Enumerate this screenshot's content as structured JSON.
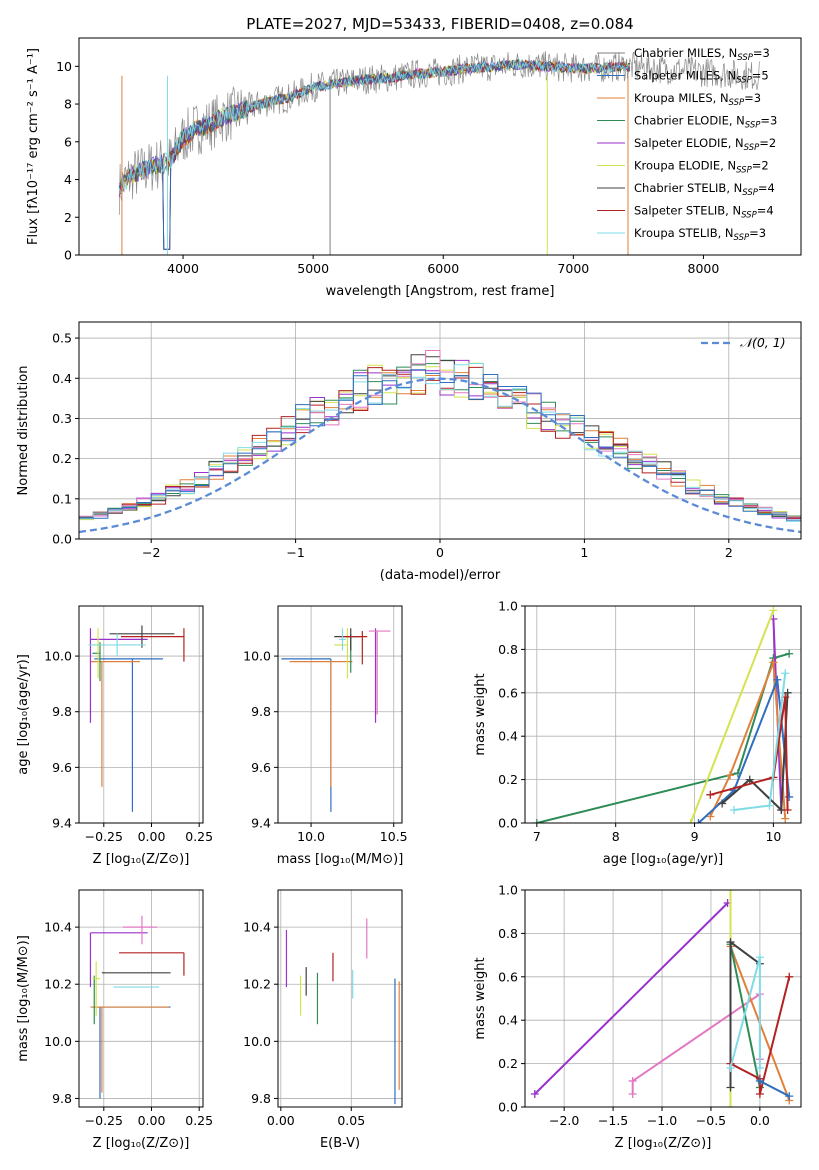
{
  "figure": {
    "title": "PLATE=2027, MJD=53433, FIBERID=0408, z=0.084"
  },
  "colors": {
    "chabrier_miles": "#7f7f7f",
    "salpeter_miles": "#2f6fbf",
    "kroupa_miles": "#e0803a",
    "chabrier_elodie": "#2e8b57",
    "salpeter_elodie": "#9932cc",
    "kroupa_elodie": "#d4e34f",
    "chabrier_stelib": "#404040",
    "salpeter_stelib": "#b22222",
    "kroupa_stelib": "#7fdbe6",
    "gaussian": "#5b8bd6"
  },
  "chart_data": [
    {
      "id": "spectrum",
      "type": "line",
      "title": "PLATE=2027, MJD=53433, FIBERID=0408, z=0.084",
      "xlabel": "wavelength [Angstrom, rest frame]",
      "ylabel": "Flux [fλ10⁻¹⁷ erg cm⁻² s⁻¹ A⁻¹]",
      "xlim": [
        3200,
        8750
      ],
      "ylim": [
        0,
        11.5
      ],
      "xticks": [
        4000,
        5000,
        6000,
        7000,
        8000
      ],
      "yticks": [
        0,
        2,
        4,
        6,
        8,
        10
      ],
      "grid": false,
      "legend_position": "right",
      "data_x": [
        3500,
        3600,
        3700,
        3800,
        3900,
        4000,
        4100,
        4200,
        4300,
        4400,
        4500,
        4600,
        4700,
        4800,
        4900,
        5000,
        5200,
        5400,
        5600,
        5800,
        6000,
        6200,
        6400,
        6600,
        6800,
        7000,
        7200,
        7400,
        7600,
        7800,
        8000,
        8200,
        8400
      ],
      "data_y": [
        3.5,
        4.2,
        4.5,
        4.8,
        5.0,
        6.2,
        6.7,
        6.9,
        7.3,
        7.5,
        7.8,
        8.0,
        8.2,
        8.3,
        8.6,
        8.9,
        9.1,
        9.3,
        9.4,
        9.6,
        9.7,
        9.9,
        10.0,
        10.1,
        10.0,
        9.9,
        9.9,
        10.0,
        9.9,
        9.8,
        9.7,
        9.6,
        9.5
      ],
      "series": [
        {
          "name": "Chabrier MILES, N_SSP=3"
        },
        {
          "name": "Salpeter MILES, N_SSP=5"
        },
        {
          "name": "Kroupa MILES, N_SSP=3"
        },
        {
          "name": "Chabrier ELODIE, N_SSP=3"
        },
        {
          "name": "Salpeter ELODIE, N_SSP=2"
        },
        {
          "name": "Kroupa ELODIE, N_SSP=2"
        },
        {
          "name": "Chabrier STELIB, N_SSP=4"
        },
        {
          "name": "Salpeter STELIB, N_SSP=4"
        },
        {
          "name": "Kroupa STELIB, N_SSP=3"
        }
      ],
      "legend": [
        {
          "prefix": "Chabrier MILES, N",
          "sub": "SSP",
          "suffix": "=3"
        },
        {
          "prefix": "Salpeter MILES, N",
          "sub": "SSP",
          "suffix": "=5"
        },
        {
          "prefix": "Kroupa MILES, N",
          "sub": "SSP",
          "suffix": "=3"
        },
        {
          "prefix": "Chabrier ELODIE, N",
          "sub": "SSP",
          "suffix": "=3"
        },
        {
          "prefix": "Salpeter ELODIE, N",
          "sub": "SSP",
          "suffix": "=2"
        },
        {
          "prefix": "Kroupa ELODIE, N",
          "sub": "SSP",
          "suffix": "=2"
        },
        {
          "prefix": "Chabrier STELIB, N",
          "sub": "SSP",
          "suffix": "=4"
        },
        {
          "prefix": "Salpeter STELIB, N",
          "sub": "SSP",
          "suffix": "=4"
        },
        {
          "prefix": "Kroupa STELIB, N",
          "sub": "SSP",
          "suffix": "=3"
        }
      ]
    },
    {
      "id": "residuals",
      "type": "histogram",
      "xlabel": "(data-model)/error",
      "ylabel": "Normed distribution",
      "xlim": [
        -2.5,
        2.5
      ],
      "ylim": [
        0,
        0.54
      ],
      "xticks": [
        -2,
        -1,
        0,
        1,
        2
      ],
      "yticks": [
        0.0,
        0.1,
        0.2,
        0.3,
        0.4,
        0.5
      ],
      "grid": true,
      "legend_position": "top-right",
      "bin_width": 0.1,
      "gaussian": {
        "mean": 0,
        "sigma": 1,
        "label": "𝒩(0, 1)"
      },
      "base_values": [
        0.02,
        0.03,
        0.035,
        0.04,
        0.045,
        0.05,
        0.06,
        0.07,
        0.08,
        0.09,
        0.1,
        0.12,
        0.13,
        0.15,
        0.17,
        0.19,
        0.21,
        0.23,
        0.25,
        0.27,
        0.3,
        0.31,
        0.33,
        0.35,
        0.37,
        0.38,
        0.39,
        0.4,
        0.41,
        0.42,
        0.41,
        0.4,
        0.39,
        0.38,
        0.36,
        0.34,
        0.32,
        0.31,
        0.29,
        0.27,
        0.25,
        0.24,
        0.22,
        0.2,
        0.19,
        0.17,
        0.15,
        0.13,
        0.12,
        0.1,
        0.09,
        0.08,
        0.07,
        0.06,
        0.05,
        0.045,
        0.04,
        0.035,
        0.03,
        0.025
      ]
    },
    {
      "id": "age_vs_Z",
      "type": "errorbar",
      "xlabel": "Z [log₁₀(Z/Z⊙)]",
      "ylabel": "age  [log₁₀(age/yr)]",
      "xlim": [
        -0.38,
        0.27
      ],
      "ylim": [
        9.4,
        10.18
      ],
      "xticks": [
        -0.25,
        0.0,
        0.25
      ],
      "yticks": [
        9.4,
        9.6,
        9.8,
        10.0
      ],
      "grid": true,
      "points": [
        {
          "series": "salpeter_miles",
          "x": -0.1,
          "y": 9.99,
          "xerr": [
            0.2,
            0.16
          ],
          "yerr": [
            0.55,
            0.0
          ]
        },
        {
          "series": "kroupa_miles",
          "x": -0.26,
          "y": 9.98,
          "xerr": [
            0.06,
            0.2
          ],
          "yerr": [
            0.45,
            0.0
          ]
        },
        {
          "series": "chabrier_elodie",
          "x": -0.27,
          "y": 10.01,
          "xerr": [
            0.04,
            0.0
          ],
          "yerr": [
            0.1,
            0.04
          ]
        },
        {
          "series": "salpeter_elodie",
          "x": -0.32,
          "y": 10.06,
          "xerr": [
            0.0,
            0.3
          ],
          "yerr": [
            0.3,
            0.04
          ]
        },
        {
          "series": "kroupa_elodie",
          "x": -0.28,
          "y": 10.04,
          "xerr": [
            0.03,
            0.03
          ],
          "yerr": [
            0.12,
            0.06
          ]
        },
        {
          "series": "chabrier_stelib",
          "x": -0.05,
          "y": 10.08,
          "xerr": [
            0.17,
            0.17
          ],
          "yerr": [
            0.05,
            0.03
          ]
        },
        {
          "series": "salpeter_stelib",
          "x": 0.17,
          "y": 10.07,
          "xerr": [
            0.33,
            0.0
          ],
          "yerr": [
            0.09,
            0.03
          ]
        },
        {
          "series": "kroupa_stelib",
          "x": -0.18,
          "y": 10.04,
          "xerr": [
            0.15,
            0.15
          ],
          "yerr": [
            0.04,
            0.04
          ]
        }
      ]
    },
    {
      "id": "age_vs_mass",
      "type": "errorbar",
      "xlabel": "mass [log₁₀(M/M⊙)]",
      "ylabel": "",
      "xlim": [
        9.8,
        10.55
      ],
      "ylim": [
        9.4,
        10.18
      ],
      "xticks": [
        10.0,
        10.5
      ],
      "yticks": [
        9.4,
        9.6,
        9.8,
        10.0
      ],
      "grid": true,
      "points": [
        {
          "series": "salpeter_miles",
          "x": 10.12,
          "y": 9.99,
          "xerr": [
            0.3,
            0.0
          ],
          "yerr": [
            0.55,
            0.0
          ]
        },
        {
          "series": "kroupa_miles",
          "x": 10.12,
          "y": 9.98,
          "xerr": [
            0.25,
            0.13
          ],
          "yerr": [
            0.45,
            0.0
          ]
        },
        {
          "series": "chabrier_elodie",
          "x": 10.24,
          "y": 10.02,
          "xerr": [
            0.0,
            0.0
          ],
          "yerr": [
            0.08,
            0.06
          ]
        },
        {
          "series": "salpeter_elodie",
          "x": 10.39,
          "y": 10.06,
          "xerr": [
            0.0,
            0.0
          ],
          "yerr": [
            0.3,
            0.04
          ]
        },
        {
          "series": "kroupa_elodie",
          "x": 10.22,
          "y": 10.04,
          "xerr": [
            0.08,
            0.0
          ],
          "yerr": [
            0.12,
            0.06
          ]
        },
        {
          "series": "chabrier_stelib",
          "x": 10.24,
          "y": 10.07,
          "xerr": [
            0.1,
            0.06
          ],
          "yerr": [
            0.05,
            0.03
          ]
        },
        {
          "series": "salpeter_stelib",
          "x": 10.31,
          "y": 10.07,
          "xerr": [
            0.13,
            0.03
          ],
          "yerr": [
            0.1,
            0.02
          ]
        },
        {
          "series": "kroupa_stelib",
          "x": 10.19,
          "y": 10.06,
          "xerr": [
            0.02,
            0.02
          ],
          "yerr": [
            0.04,
            0.04
          ]
        },
        {
          "series": "kroupa_miles_2",
          "x": 10.4,
          "y": 10.09,
          "xerr": [
            0.05,
            0.08
          ],
          "yerr": [
            0.3,
            0.0
          ]
        }
      ]
    },
    {
      "id": "mass_weight_vs_age",
      "type": "line",
      "xlabel": "age  [log₁₀(age/yr)]",
      "ylabel": "mass weight",
      "xlim": [
        6.85,
        10.35
      ],
      "ylim": [
        0,
        1.0
      ],
      "xticks": [
        7,
        8,
        9,
        10
      ],
      "yticks": [
        0.0,
        0.2,
        0.4,
        0.6,
        0.8,
        1.0
      ],
      "grid": true,
      "series": [
        {
          "key": "chabrier_elodie",
          "x": [
            7.0,
            9.55,
            10.0,
            10.2
          ],
          "y": [
            0.0,
            0.23,
            0.76,
            0.78
          ]
        },
        {
          "key": "salpeter_elodie",
          "x": [
            10.0,
            10.1
          ],
          "y": [
            0.94,
            0.06
          ]
        },
        {
          "key": "kroupa_elodie",
          "x": [
            8.95,
            10.0
          ],
          "y": [
            0.0,
            0.98
          ]
        },
        {
          "key": "kroupa_miles",
          "x": [
            9.2,
            9.45,
            10.0,
            10.15
          ],
          "y": [
            0.03,
            0.22,
            0.74,
            0.02
          ]
        },
        {
          "key": "salpeter_miles",
          "x": [
            9.05,
            9.5,
            10.05,
            10.2
          ],
          "y": [
            0.0,
            0.15,
            0.66,
            0.12
          ]
        },
        {
          "key": "chabrier_stelib",
          "x": [
            9.35,
            9.7,
            10.1,
            10.18
          ],
          "y": [
            0.09,
            0.2,
            0.06,
            0.6
          ]
        },
        {
          "key": "salpeter_stelib",
          "x": [
            9.2,
            10.0,
            10.15,
            10.18
          ],
          "y": [
            0.13,
            0.21,
            0.58,
            0.06
          ]
        },
        {
          "key": "kroupa_stelib",
          "x": [
            9.5,
            9.95,
            10.15
          ],
          "y": [
            0.06,
            0.08,
            0.69
          ]
        }
      ]
    },
    {
      "id": "mass_vs_Z",
      "type": "errorbar",
      "xlabel": "Z [log₁₀(Z/Z⊙)]",
      "ylabel": "mass [log₁₀(M/M⊙)]",
      "xlim": [
        -0.38,
        0.27
      ],
      "ylim": [
        9.77,
        10.53
      ],
      "xticks": [
        -0.25,
        0.0,
        0.25
      ],
      "yticks": [
        9.8,
        10.0,
        10.2,
        10.4
      ],
      "grid": true,
      "points": [
        {
          "series": "salpeter_miles",
          "x": -0.27,
          "y": 10.12,
          "xerr": [
            0.04,
            0.37
          ],
          "yerr": [
            0.32,
            0.0
          ]
        },
        {
          "series": "kroupa_miles",
          "x": -0.26,
          "y": 10.12,
          "xerr": [
            0.06,
            0.35
          ],
          "yerr": [
            0.3,
            0.0
          ]
        },
        {
          "series": "chabrier_elodie",
          "x": -0.3,
          "y": 10.23,
          "xerr": [
            0.0,
            0.0
          ],
          "yerr": [
            0.17,
            0.0
          ]
        },
        {
          "series": "salpeter_elodie",
          "x": -0.32,
          "y": 10.38,
          "xerr": [
            0.0,
            0.3
          ],
          "yerr": [
            0.19,
            0.0
          ]
        },
        {
          "series": "kroupa_elodie",
          "x": -0.29,
          "y": 10.22,
          "xerr": [
            0.02,
            0.02
          ],
          "yerr": [
            0.13,
            0.06
          ]
        },
        {
          "series": "chabrier_stelib",
          "x": -0.08,
          "y": 10.24,
          "xerr": [
            0.18,
            0.18
          ],
          "yerr": [
            0.0,
            0.0
          ]
        },
        {
          "series": "salpeter_stelib",
          "x": 0.17,
          "y": 10.31,
          "xerr": [
            0.34,
            0.0
          ],
          "yerr": [
            0.08,
            0.0
          ]
        },
        {
          "series": "kroupa_stelib",
          "x": -0.08,
          "y": 10.19,
          "xerr": [
            0.12,
            0.12
          ],
          "yerr": [
            0.0,
            0.0
          ]
        },
        {
          "series": "kroupa_miles_2",
          "x": -0.05,
          "y": 10.4,
          "xerr": [
            0.1,
            0.08
          ],
          "yerr": [
            0.06,
            0.04
          ]
        }
      ]
    },
    {
      "id": "mass_vs_ebv",
      "type": "errorbar",
      "xlabel": "E(B-V)",
      "ylabel": "",
      "xlim": [
        -0.002,
        0.086
      ],
      "ylim": [
        9.77,
        10.53
      ],
      "xticks": [
        0.0,
        0.05
      ],
      "xtick_labels": [
        "0.00",
        "0.05"
      ],
      "yticks": [
        9.8,
        10.0,
        10.2,
        10.4
      ],
      "grid": true,
      "points": [
        {
          "series": "salpeter_elodie",
          "x": 0.004,
          "y": 10.29,
          "yerr": [
            0.1,
            0.1
          ]
        },
        {
          "series": "kroupa_elodie",
          "x": 0.014,
          "y": 10.16,
          "yerr": [
            0.07,
            0.07
          ]
        },
        {
          "series": "chabrier_stelib",
          "x": 0.018,
          "y": 10.21,
          "yerr": [
            0.05,
            0.05
          ]
        },
        {
          "series": "chabrier_elodie",
          "x": 0.026,
          "y": 10.15,
          "yerr": [
            0.09,
            0.09
          ]
        },
        {
          "series": "salpeter_stelib",
          "x": 0.037,
          "y": 10.26,
          "yerr": [
            0.05,
            0.05
          ]
        },
        {
          "series": "kroupa_stelib",
          "x": 0.051,
          "y": 10.2,
          "yerr": [
            0.05,
            0.05
          ]
        },
        {
          "series": "kroupa_miles_2",
          "x": 0.061,
          "y": 10.36,
          "yerr": [
            0.07,
            0.07
          ]
        },
        {
          "series": "salpeter_miles",
          "x": 0.081,
          "y": 10.0,
          "yerr": [
            0.22,
            0.22
          ]
        },
        {
          "series": "kroupa_miles",
          "x": 0.084,
          "y": 10.02,
          "yerr": [
            0.19,
            0.19
          ]
        }
      ]
    },
    {
      "id": "mass_weight_vs_Z",
      "type": "line",
      "xlabel": "Z [log₁₀(Z/Z⊙)]",
      "ylabel": "mass weight",
      "xlim": [
        -2.4,
        0.42
      ],
      "ylim": [
        0,
        1.0
      ],
      "xticks": [
        -2.0,
        -1.5,
        -1.0,
        -0.5,
        0.0
      ],
      "yticks": [
        0.0,
        0.2,
        0.4,
        0.6,
        0.8,
        1.0
      ],
      "grid": true,
      "series": [
        {
          "key": "salpeter_elodie",
          "x": [
            -2.3,
            -0.33
          ],
          "y": [
            0.06,
            0.94
          ]
        },
        {
          "key": "kroupa_miles_2",
          "x": [
            -1.3,
            -1.3,
            0.0,
            0.0
          ],
          "y": [
            0.06,
            0.12,
            0.52,
            0.22
          ]
        },
        {
          "key": "kroupa_elodie",
          "x": [
            -0.3,
            -0.3
          ],
          "y": [
            0.0,
            1.0
          ]
        },
        {
          "key": "kroupa_miles",
          "x": [
            -0.3,
            0.3
          ],
          "y": [
            0.74,
            0.03
          ]
        },
        {
          "key": "chabrier_elodie",
          "x": [
            -0.3,
            0.0
          ],
          "y": [
            0.75,
            0.09
          ]
        },
        {
          "key": "chabrier_stelib",
          "x": [
            -0.3,
            -0.3,
            0.0
          ],
          "y": [
            0.09,
            0.76,
            0.66
          ]
        },
        {
          "key": "salpeter_stelib",
          "x": [
            -0.3,
            0.0,
            0.0,
            0.3
          ],
          "y": [
            0.2,
            0.13,
            0.06,
            0.6
          ]
        },
        {
          "key": "kroupa_stelib",
          "x": [
            -0.3,
            0.0,
            0.0
          ],
          "y": [
            0.18,
            0.69,
            0.18
          ]
        },
        {
          "key": "salpeter_miles",
          "x": [
            0.0,
            0.3
          ],
          "y": [
            0.12,
            0.05
          ]
        }
      ]
    }
  ]
}
